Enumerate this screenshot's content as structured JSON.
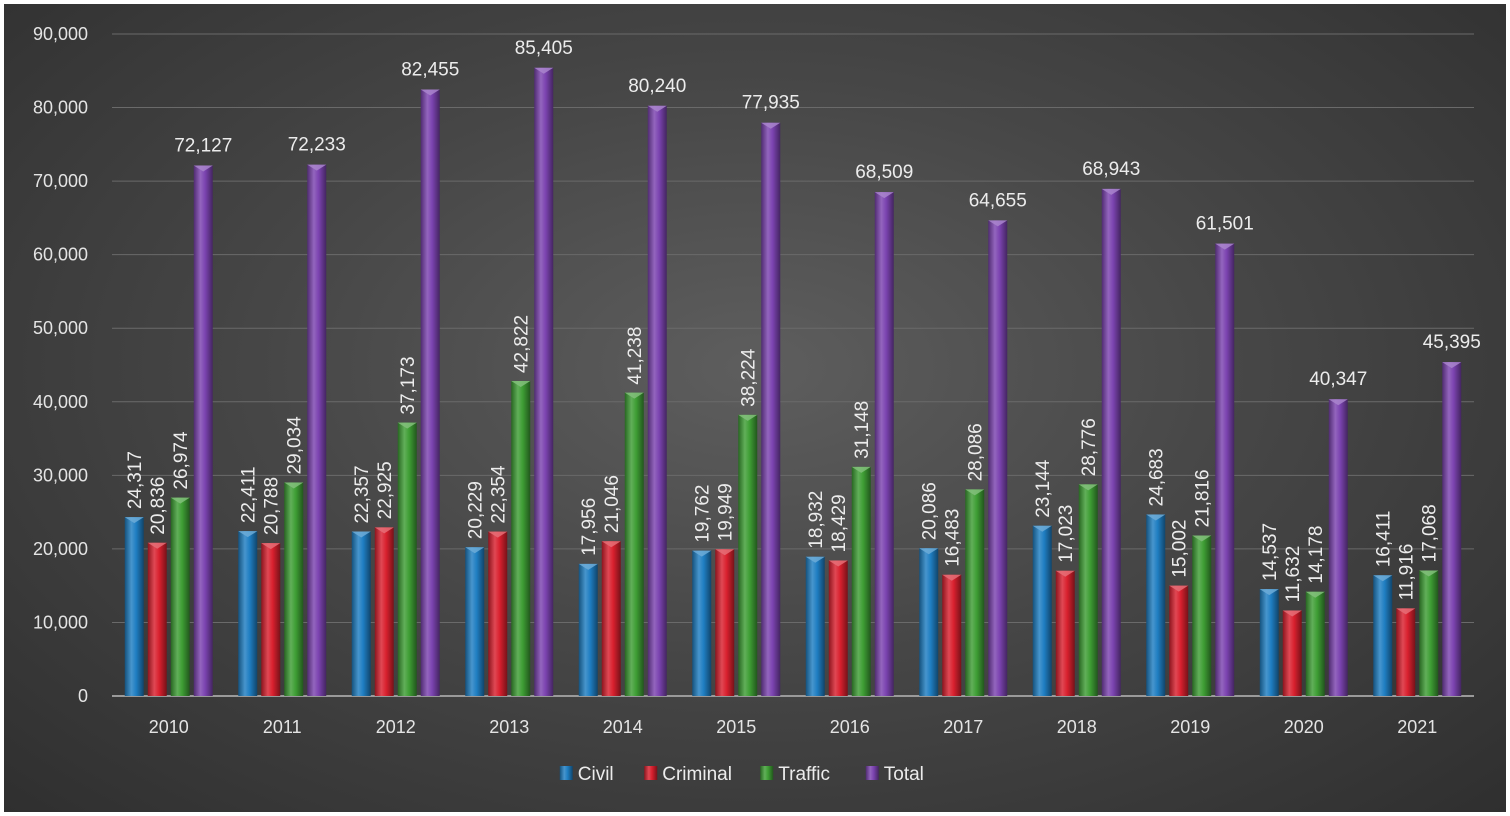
{
  "colors": {
    "Civil": "#1f7ec2",
    "Criminal": "#d9202e",
    "Traffic": "#3e9e34",
    "Total": "#7b43b0",
    "grid": "#6a6a6a",
    "text": "#e4e4e4"
  },
  "chart_data": {
    "type": "bar",
    "title": "",
    "xlabel": "",
    "ylabel": "",
    "ylim": [
      0,
      90000
    ],
    "yticks": [
      0,
      10000,
      20000,
      30000,
      40000,
      50000,
      60000,
      70000,
      80000,
      90000
    ],
    "ytick_labels": [
      "0",
      "10,000",
      "20,000",
      "30,000",
      "40,000",
      "50,000",
      "60,000",
      "70,000",
      "80,000",
      "90,000"
    ],
    "grid": true,
    "legend_position": "bottom",
    "categories": [
      "2010",
      "2011",
      "2012",
      "2013",
      "2014",
      "2015",
      "2016",
      "2017",
      "2018",
      "2019",
      "2020",
      "2021"
    ],
    "series": [
      {
        "name": "Civil",
        "values": [
          24317,
          22411,
          22357,
          20229,
          17956,
          19762,
          18932,
          20086,
          23144,
          24683,
          14537,
          16411
        ],
        "labels": [
          "24,317",
          "22,411",
          "22,357",
          "20,229",
          "17,956",
          "19,762",
          "18,932",
          "20,086",
          "23,144",
          "24,683",
          "14,537",
          "16,411"
        ]
      },
      {
        "name": "Criminal",
        "values": [
          20836,
          20788,
          22925,
          22354,
          21046,
          19949,
          18429,
          16483,
          17023,
          15002,
          11632,
          11916
        ],
        "labels": [
          "20,836",
          "20,788",
          "22,925",
          "22,354",
          "21,046",
          "19,949",
          "18,429",
          "16,483",
          "17,023",
          "15,002",
          "11,632",
          "11,916"
        ]
      },
      {
        "name": "Traffic",
        "values": [
          26974,
          29034,
          37173,
          42822,
          41238,
          38224,
          31148,
          28086,
          28776,
          21816,
          14178,
          17068
        ],
        "labels": [
          "26,974",
          "29,034",
          "37,173",
          "42,822",
          "41,238",
          "38,224",
          "31,148",
          "28,086",
          "28,776",
          "21,816",
          "14,178",
          "17,068"
        ]
      },
      {
        "name": "Total",
        "values": [
          72127,
          72233,
          82455,
          85405,
          80240,
          77935,
          68509,
          64655,
          68943,
          61501,
          40347,
          45395
        ],
        "labels": [
          "72,127",
          "72,233",
          "82,455",
          "85,405",
          "80,240",
          "77,935",
          "68,509",
          "64,655",
          "68,943",
          "61,501",
          "40,347",
          "45,395"
        ]
      }
    ]
  }
}
